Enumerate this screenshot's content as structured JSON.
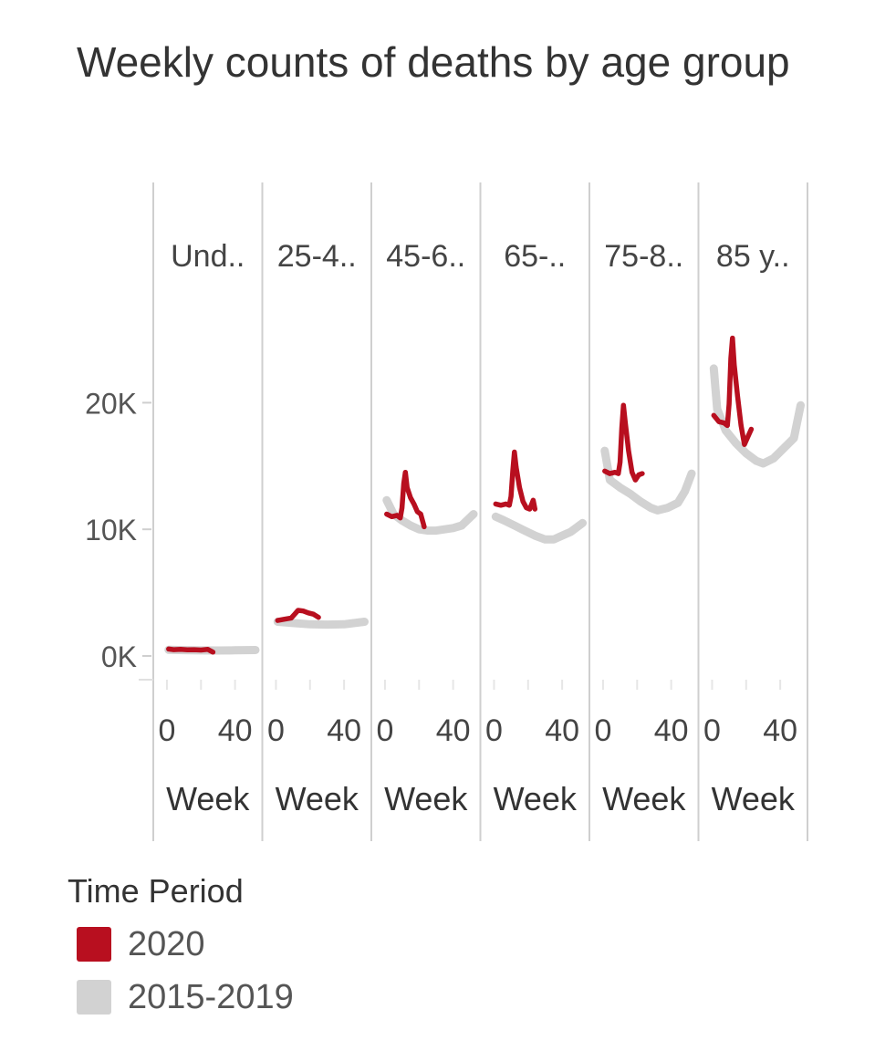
{
  "title": "Weekly counts of deaths by age group",
  "colors": {
    "year_2020": "#b80f1f",
    "baseline": "#d2d2d2"
  },
  "legend": {
    "title": "Time Period",
    "items": [
      {
        "label": "2020",
        "color": "#b80f1f"
      },
      {
        "label": "2015-2019",
        "color": "#d2d2d2"
      }
    ]
  },
  "chart_data": {
    "type": "line",
    "title": "Weekly counts of deaths by age group",
    "facet_labels": [
      "Und..",
      "25-4..",
      "45-6..",
      "65-..",
      "75-8..",
      "85 y.."
    ],
    "xlabel": "Week",
    "x_ticks": [
      0,
      40
    ],
    "xlim": [
      -8,
      56
    ],
    "y_ticks": [
      {
        "value": 0,
        "label": "0K"
      },
      {
        "value": 10000,
        "label": "10K"
      },
      {
        "value": 20000,
        "label": "20K"
      }
    ],
    "ylim": [
      -1500,
      28000
    ],
    "grid": false,
    "legend_position": "bottom-left",
    "panels": [
      {
        "label": "Und..",
        "series_2020": [
          [
            1,
            550
          ],
          [
            4,
            500
          ],
          [
            8,
            520
          ],
          [
            12,
            480
          ],
          [
            16,
            500
          ],
          [
            20,
            470
          ],
          [
            24,
            520
          ],
          [
            27,
            300
          ]
        ],
        "series_2015_2019": [
          [
            1,
            480
          ],
          [
            10,
            460
          ],
          [
            20,
            440
          ],
          [
            30,
            430
          ],
          [
            40,
            450
          ],
          [
            52,
            470
          ]
        ]
      },
      {
        "label": "25-4..",
        "series_2020": [
          [
            1,
            2800
          ],
          [
            5,
            2900
          ],
          [
            9,
            3000
          ],
          [
            11,
            3300
          ],
          [
            13,
            3600
          ],
          [
            16,
            3550
          ],
          [
            19,
            3400
          ],
          [
            22,
            3300
          ],
          [
            25,
            3050
          ]
        ],
        "series_2015_2019": [
          [
            1,
            2700
          ],
          [
            10,
            2600
          ],
          [
            20,
            2500
          ],
          [
            30,
            2480
          ],
          [
            40,
            2500
          ],
          [
            52,
            2700
          ]
        ]
      },
      {
        "label": "45-6..",
        "series_2020": [
          [
            1,
            11200
          ],
          [
            4,
            11000
          ],
          [
            7,
            11100
          ],
          [
            9,
            10900
          ],
          [
            10,
            11700
          ],
          [
            11,
            13600
          ],
          [
            12,
            14500
          ],
          [
            13,
            13300
          ],
          [
            15,
            12500
          ],
          [
            17,
            12000
          ],
          [
            19,
            11400
          ],
          [
            21,
            11200
          ],
          [
            23,
            10200
          ]
        ],
        "series_2015_2019": [
          [
            1,
            12300
          ],
          [
            5,
            11200
          ],
          [
            10,
            10700
          ],
          [
            15,
            10300
          ],
          [
            20,
            10000
          ],
          [
            25,
            9900
          ],
          [
            30,
            9900
          ],
          [
            35,
            10000
          ],
          [
            40,
            10100
          ],
          [
            45,
            10300
          ],
          [
            52,
            11200
          ]
        ]
      },
      {
        "label": "65-..",
        "series_2020": [
          [
            1,
            12000
          ],
          [
            4,
            11900
          ],
          [
            7,
            12000
          ],
          [
            9,
            11900
          ],
          [
            10,
            12600
          ],
          [
            11,
            14600
          ],
          [
            12,
            16100
          ],
          [
            13,
            14900
          ],
          [
            15,
            13300
          ],
          [
            17,
            12200
          ],
          [
            19,
            11700
          ],
          [
            21,
            11600
          ],
          [
            23,
            12300
          ],
          [
            24,
            11600
          ]
        ],
        "series_2015_2019": [
          [
            1,
            11000
          ],
          [
            6,
            10700
          ],
          [
            12,
            10300
          ],
          [
            18,
            9900
          ],
          [
            24,
            9500
          ],
          [
            30,
            9200
          ],
          [
            35,
            9200
          ],
          [
            40,
            9500
          ],
          [
            45,
            9800
          ],
          [
            52,
            10500
          ]
        ]
      },
      {
        "label": "75-8..",
        "series_2020": [
          [
            1,
            14600
          ],
          [
            4,
            14400
          ],
          [
            7,
            14500
          ],
          [
            9,
            14400
          ],
          [
            10,
            15300
          ],
          [
            11,
            18000
          ],
          [
            12,
            19800
          ],
          [
            13,
            18500
          ],
          [
            15,
            16200
          ],
          [
            17,
            14500
          ],
          [
            19,
            13900
          ],
          [
            21,
            14300
          ],
          [
            23,
            14400
          ]
        ],
        "series_2015_2019": [
          [
            1,
            16200
          ],
          [
            4,
            13900
          ],
          [
            10,
            13300
          ],
          [
            16,
            12800
          ],
          [
            22,
            12200
          ],
          [
            28,
            11700
          ],
          [
            32,
            11500
          ],
          [
            38,
            11700
          ],
          [
            44,
            12100
          ],
          [
            48,
            13000
          ],
          [
            52,
            14400
          ]
        ]
      },
      {
        "label": "85 y..",
        "series_2020": [
          [
            1,
            19000
          ],
          [
            4,
            18500
          ],
          [
            7,
            18400
          ],
          [
            9,
            18200
          ],
          [
            10,
            19900
          ],
          [
            11,
            23500
          ],
          [
            12,
            25100
          ],
          [
            13,
            23000
          ],
          [
            15,
            20500
          ],
          [
            17,
            18200
          ],
          [
            19,
            16700
          ],
          [
            21,
            17300
          ],
          [
            23,
            17900
          ]
        ],
        "series_2015_2019": [
          [
            1,
            22700
          ],
          [
            3,
            19500
          ],
          [
            8,
            17800
          ],
          [
            14,
            16800
          ],
          [
            20,
            16000
          ],
          [
            26,
            15400
          ],
          [
            30,
            15200
          ],
          [
            36,
            15600
          ],
          [
            42,
            16400
          ],
          [
            48,
            17200
          ],
          [
            50,
            18500
          ],
          [
            52,
            19800
          ]
        ]
      }
    ]
  }
}
